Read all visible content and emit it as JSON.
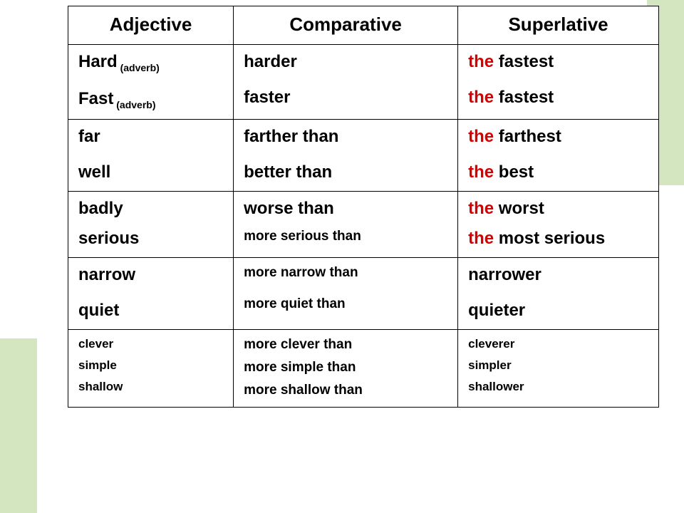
{
  "colors": {
    "accent_bg": "#d4e6c0",
    "text": "#000000",
    "emphasis": "#d60000",
    "border": "#000000",
    "page_bg": "#ffffff"
  },
  "typography": {
    "header_fontsize": 26,
    "row_big_fontsize": 24,
    "row_med_fontsize": 21,
    "row_small_fontsize": 19,
    "annotation_fontsize": 14,
    "font_family": "Century Gothic"
  },
  "table": {
    "type": "table",
    "columns": [
      "Adjective",
      "Comparative",
      "Superlative"
    ],
    "sections": [
      {
        "rows": [
          {
            "adj": "Hard",
            "adj_note": "(adverb)",
            "comp": "harder",
            "sup_pre": "the ",
            "sup": "fastest",
            "size": "big",
            "gap": "none"
          },
          {
            "adj": "Fast",
            "adj_note": "(adverb)",
            "comp": "faster",
            "sup_pre": "the ",
            "sup": "fastest",
            "size": "big",
            "gap": "lg"
          }
        ]
      },
      {
        "rows": [
          {
            "adj": "far",
            "comp": "farther than",
            "sup_pre": "the ",
            "sup": "farthest",
            "size": "big",
            "gap": "none"
          },
          {
            "adj": "well",
            "comp": "better than",
            "sup_pre": "the ",
            "sup": "best",
            "size": "big",
            "gap": "lg"
          }
        ]
      },
      {
        "rows": [
          {
            "adj": "badly",
            "comp": "worse than",
            "sup_pre": "the ",
            "sup": "worst",
            "size": "big",
            "gap": "none"
          },
          {
            "adj": "serious",
            "comp": "more serious  than",
            "comp_size": "small",
            "sup_pre": "the ",
            "sup": "most serious",
            "size": "big",
            "gap": "md"
          }
        ]
      },
      {
        "rows": [
          {
            "adj": "narrow",
            "comp": "more narrow than",
            "comp_size": "small",
            "sup": "narrower",
            "size": "big",
            "gap": "none"
          },
          {
            "adj": "quiet",
            "comp": "more quiet than",
            "comp_size": "small",
            "sup": "quieter",
            "size": "big",
            "gap": "lg"
          }
        ]
      },
      {
        "rows": [
          {
            "adj": "clever",
            "comp": "more clever than",
            "sup": "cleverer",
            "size": "xsmall",
            "comp_size": "small",
            "gap": "none"
          },
          {
            "adj": "simple",
            "comp": "more simple than",
            "sup": "simpler",
            "size": "xsmall",
            "comp_size": "small",
            "gap": "sm"
          },
          {
            "adj": "shallow",
            "comp": "more shallow than",
            "sup": "shallower",
            "size": "xsmall",
            "comp_size": "small",
            "gap": "sm"
          }
        ]
      }
    ]
  }
}
